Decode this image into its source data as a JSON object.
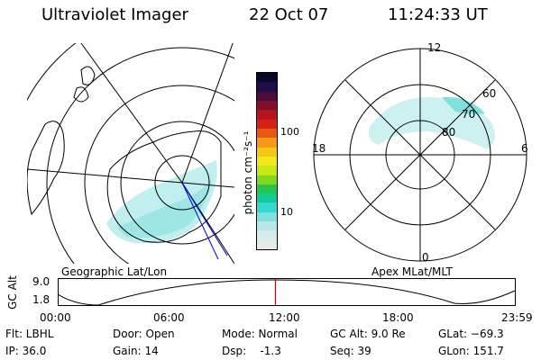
{
  "header": {
    "instrument": "Ultraviolet Imager",
    "date": "22 Oct 07",
    "time": "11:24:33 UT"
  },
  "geo_panel": {
    "caption": "Geographic Lat/Lon"
  },
  "apex_panel": {
    "caption": "Apex MLat/MLT",
    "mlt_labels": {
      "top": "12",
      "left": "18",
      "right": "6",
      "bottom": "0"
    },
    "lat_labels": [
      "60",
      "70",
      "80"
    ]
  },
  "colorbar": {
    "unit": "photon cm⁻²s⁻¹",
    "tick_100": "100",
    "tick_10": "10",
    "colors": [
      "#e8e8e8",
      "#d6ecec",
      "#b8e6e6",
      "#7fe0e0",
      "#33d9d0",
      "#12c99a",
      "#22c84a",
      "#7fd81a",
      "#c8e816",
      "#f2e81c",
      "#f5c818",
      "#f59a14",
      "#e85a10",
      "#d8201a",
      "#b4141e",
      "#80102a",
      "#4a0c3a",
      "#1e0c46",
      "#0a0828"
    ]
  },
  "timeline": {
    "ylabel": "GC Alt",
    "ytick_top": "9.0",
    "ytick_bottom": "1.8",
    "xticks": [
      "00:00",
      "06:00",
      "12:00",
      "18:00",
      "23:59"
    ],
    "current_time_hours": 11.41,
    "marker_color": "#cc0000"
  },
  "info": {
    "filter": "Flt: LBHL",
    "ip": "IP: 36.0",
    "door": "Door: Open",
    "gain": "Gain: 14",
    "mode": "Mode: Normal",
    "dsp": "Dsp:    -1.3",
    "gc_alt": "GC Alt: 9.0 Re",
    "seq": "Seq: 39",
    "glat": "GLat: −69.3",
    "glon": "GLon: 151.7"
  }
}
